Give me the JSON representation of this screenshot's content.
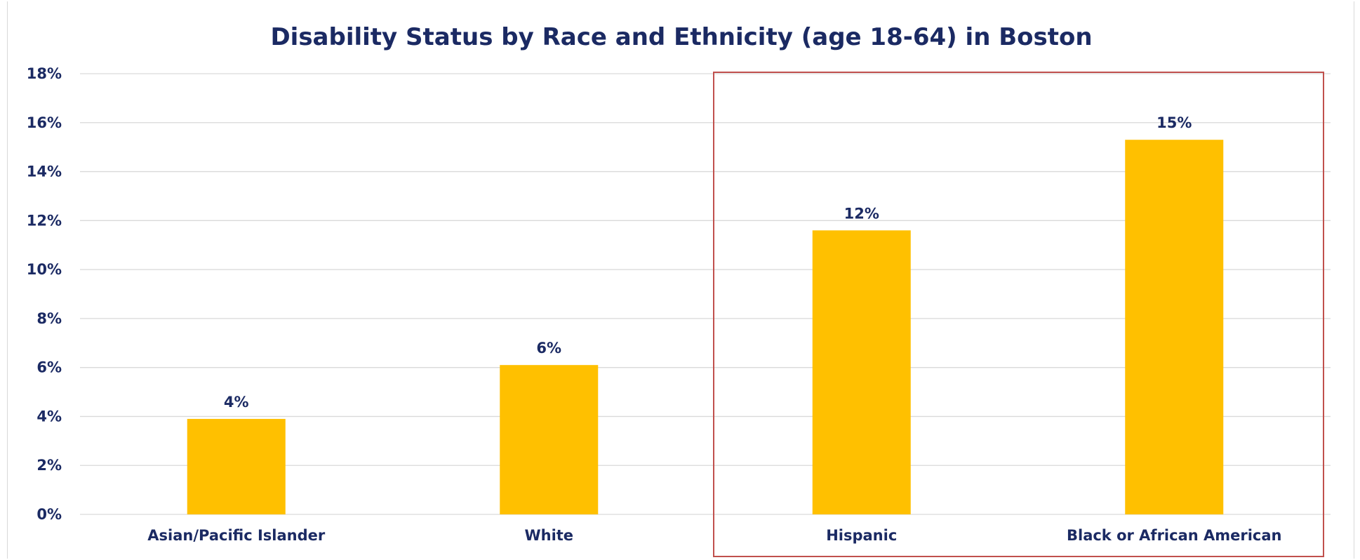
{
  "chart_data": {
    "type": "bar",
    "title": "Disability Status by Race and Ethnicity (age 18-64) in Boston",
    "xlabel": "",
    "ylabel": "",
    "categories": [
      "Asian/Pacific Islander",
      "White",
      "Hispanic",
      "Black or African American"
    ],
    "values": [
      3.9,
      6.1,
      11.6,
      15.3
    ],
    "data_labels": [
      "4%",
      "6%",
      "12%",
      "15%"
    ],
    "ylim": [
      0,
      18
    ],
    "yticks": [
      0,
      2,
      4,
      6,
      8,
      10,
      12,
      14,
      16,
      18
    ],
    "ytick_labels": [
      "0%",
      "2%",
      "4%",
      "6%",
      "8%",
      "10%",
      "12%",
      "14%",
      "16%",
      "18%"
    ],
    "grid": true,
    "legend": "none",
    "highlight_categories": [
      "Hispanic",
      "Black or African American"
    ]
  },
  "colors": {
    "bar": "#ffc000",
    "text": "#1b2a63",
    "gridline": "#d9d9d9",
    "highlight_box": "#c0504d"
  }
}
